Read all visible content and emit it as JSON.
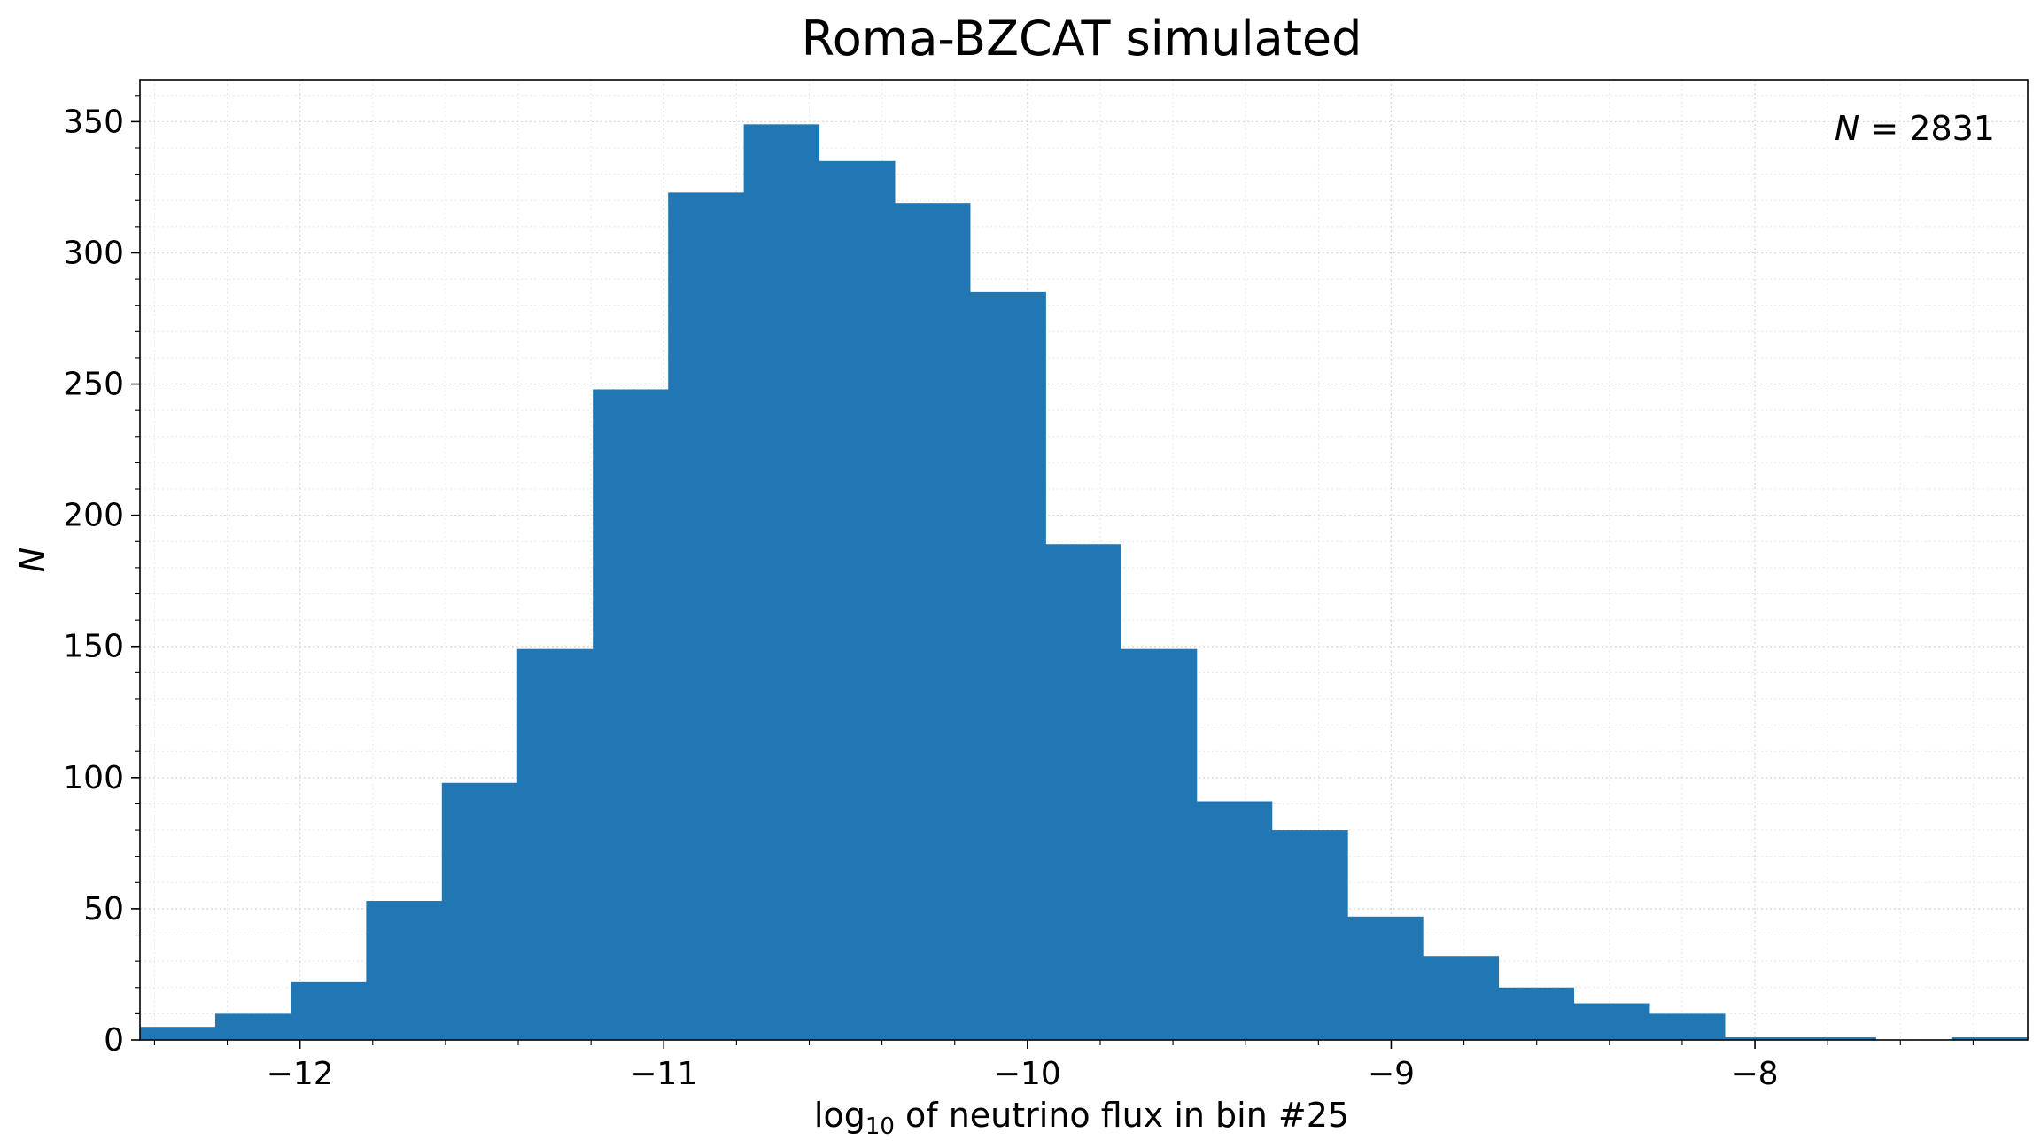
{
  "chart_data": {
    "type": "bar",
    "title": "Roma-BZCAT simulated",
    "xlabel_main": "log",
    "xlabel_sub": "10",
    "xlabel_rest": " of neutrino flux in bin #25",
    "ylabel": "N",
    "annotation_var": "N",
    "annotation_eq": " = 2831",
    "xlim": [
      -12.44,
      -7.25
    ],
    "ylim": [
      0,
      366
    ],
    "xticks": [
      -12,
      -11,
      -10,
      -9,
      -8
    ],
    "xtick_labels": [
      "−12",
      "−11",
      "−10",
      "−9",
      "−8"
    ],
    "yticks": [
      0,
      50,
      100,
      150,
      200,
      250,
      300,
      350
    ],
    "ytick_labels": [
      "0",
      "50",
      "100",
      "150",
      "200",
      "250",
      "300",
      "350"
    ],
    "grid": true,
    "bin_edges": [
      -12.44,
      -12.233,
      -12.025,
      -11.818,
      -11.61,
      -11.403,
      -11.195,
      -10.988,
      -10.78,
      -10.573,
      -10.365,
      -10.158,
      -9.95,
      -9.743,
      -9.535,
      -9.328,
      -9.12,
      -8.913,
      -8.705,
      -8.498,
      -8.29,
      -8.083,
      -7.875,
      -7.668,
      -7.46,
      -7.253
    ],
    "values": [
      5,
      10,
      22,
      53,
      98,
      149,
      248,
      323,
      349,
      335,
      319,
      285,
      189,
      149,
      91,
      80,
      47,
      32,
      20,
      14,
      10,
      1,
      1,
      0,
      1
    ],
    "bar_color": "#2077b4"
  }
}
